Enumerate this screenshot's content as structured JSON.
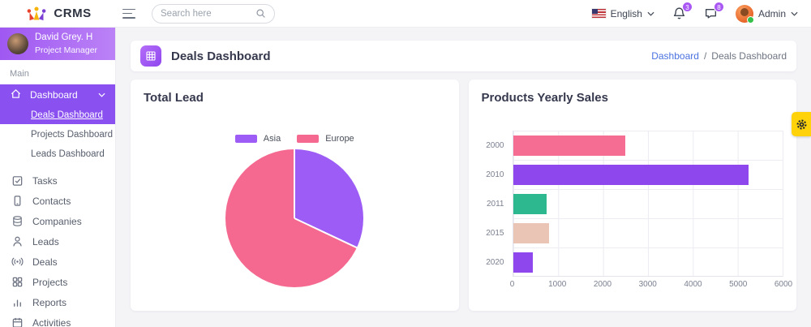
{
  "brand": {
    "name": "CRMS"
  },
  "topbar": {
    "search_placeholder": "Search here",
    "language": "English",
    "notifications_badge": "3",
    "messages_badge": "8",
    "user_label": "Admin"
  },
  "sidebar": {
    "profile": {
      "name": "David Grey. H",
      "role": "Project Manager"
    },
    "section_label": "Main",
    "dashboard_group": {
      "label": "Dashboard",
      "icon": "home-icon",
      "subitems": [
        {
          "label": "Deals Dashboard",
          "active": true
        },
        {
          "label": "Projects Dashboard",
          "active": false
        },
        {
          "label": "Leads Dashboard",
          "active": false
        }
      ]
    },
    "items": [
      {
        "label": "Tasks",
        "icon": "tasks-icon"
      },
      {
        "label": "Contacts",
        "icon": "contacts-icon"
      },
      {
        "label": "Companies",
        "icon": "companies-icon"
      },
      {
        "label": "Leads",
        "icon": "leads-icon"
      },
      {
        "label": "Deals",
        "icon": "deals-icon"
      },
      {
        "label": "Projects",
        "icon": "projects-icon"
      },
      {
        "label": "Reports",
        "icon": "reports-icon"
      },
      {
        "label": "Activities",
        "icon": "activities-icon"
      }
    ]
  },
  "page_header": {
    "title": "Deals Dashboard",
    "breadcrumb": {
      "link": "Dashboard",
      "separator": "/",
      "current": "Deals Dashboard"
    }
  },
  "cards": [
    {
      "title": "Total Lead"
    },
    {
      "title": "Products Yearly Sales"
    }
  ],
  "chart_data": [
    {
      "type": "pie",
      "title": "Total Lead",
      "legend_position": "top",
      "series": [
        {
          "name": "Asia",
          "value": 32,
          "color": "#9c5cf5"
        },
        {
          "name": "Europe",
          "value": 68,
          "color": "#f5688f"
        }
      ]
    },
    {
      "type": "bar",
      "title": "Products Yearly Sales",
      "orientation": "horizontal",
      "categories": [
        "2000",
        "2010",
        "2011",
        "2015",
        "2020"
      ],
      "values": [
        2500,
        5250,
        750,
        800,
        450
      ],
      "bar_colors": [
        "#f56d92",
        "#8d47ed",
        "#2eb88f",
        "#eac4b5",
        "#8d47ed"
      ],
      "xlim": [
        0,
        6000
      ],
      "xticks": [
        0,
        1000,
        2000,
        3000,
        4000,
        5000,
        6000
      ],
      "grid": true
    }
  ],
  "theme": {
    "accent_purple": "#8a50f0",
    "badge_purple": "#a958f3",
    "link_blue": "#4a72e0",
    "settings_yellow": "#ffd20a"
  }
}
